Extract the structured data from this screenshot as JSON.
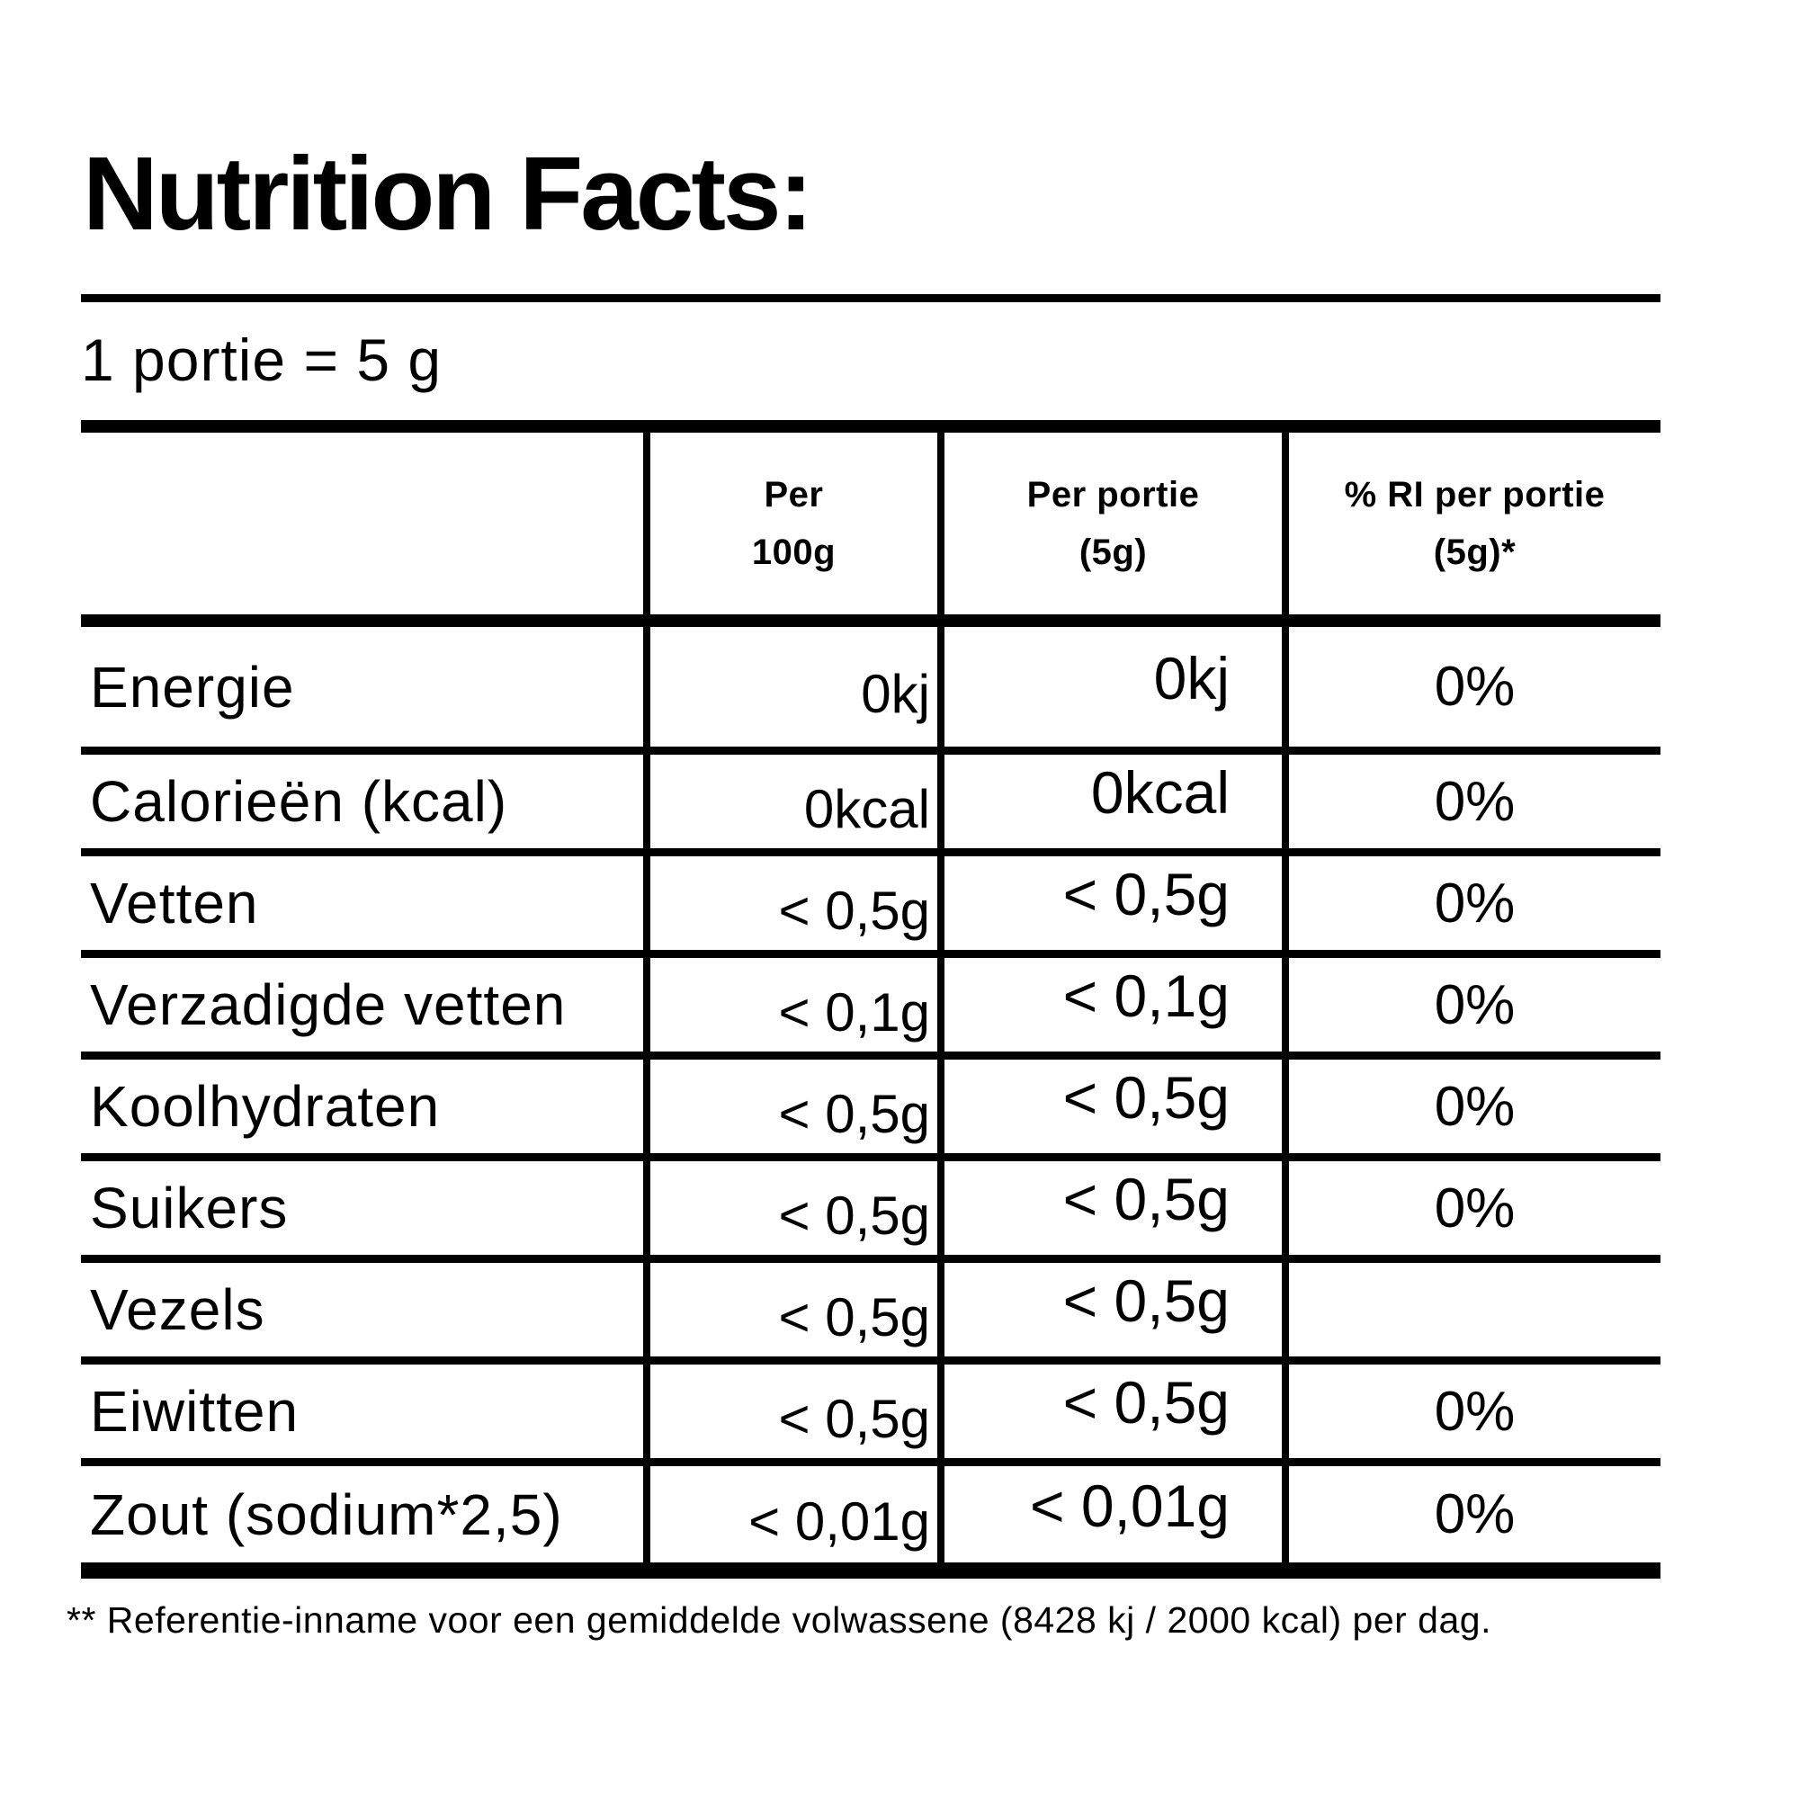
{
  "colors": {
    "ink": "#000000",
    "paper": "#ffffff"
  },
  "header": {
    "title": "Nutrition Facts:"
  },
  "serving": {
    "text": "1 portie = 5 g"
  },
  "table": {
    "columns": [
      {
        "line1": "Per",
        "line2": "100g"
      },
      {
        "line1": "Per portie",
        "line2": "(5g)"
      },
      {
        "line1": "% RI per portie",
        "line2": "(5g)*"
      }
    ],
    "rows": [
      {
        "label": "Energie",
        "per_100g": "0kj",
        "per_portie": "0kj",
        "ri_per_portie": "0%"
      },
      {
        "label": "Calorieën (kcal)",
        "per_100g": "0kcal",
        "per_portie": "0kcal",
        "ri_per_portie": "0%"
      },
      {
        "label": "Vetten",
        "per_100g": "< 0,5g",
        "per_portie": "< 0,5g",
        "ri_per_portie": "0%"
      },
      {
        "label": "Verzadigde vetten",
        "per_100g": "< 0,1g",
        "per_portie": "< 0,1g",
        "ri_per_portie": "0%"
      },
      {
        "label": "Koolhydraten",
        "per_100g": "< 0,5g",
        "per_portie": "< 0,5g",
        "ri_per_portie": "0%"
      },
      {
        "label": "Suikers",
        "per_100g": "< 0,5g",
        "per_portie": "< 0,5g",
        "ri_per_portie": "0%"
      },
      {
        "label": "Vezels",
        "per_100g": "< 0,5g",
        "per_portie": "< 0,5g",
        "ri_per_portie": ""
      },
      {
        "label": "Eiwitten",
        "per_100g": "< 0,5g",
        "per_portie": "< 0,5g",
        "ri_per_portie": "0%"
      },
      {
        "label": "Zout (sodium*2,5)",
        "per_100g": "< 0,01g",
        "per_portie": "< 0,01g",
        "ri_per_portie": "0%"
      }
    ]
  },
  "footnote": {
    "text": "** Referentie-inname voor een gemiddelde volwassene (8428 kj / 2000 kcal) per dag."
  }
}
